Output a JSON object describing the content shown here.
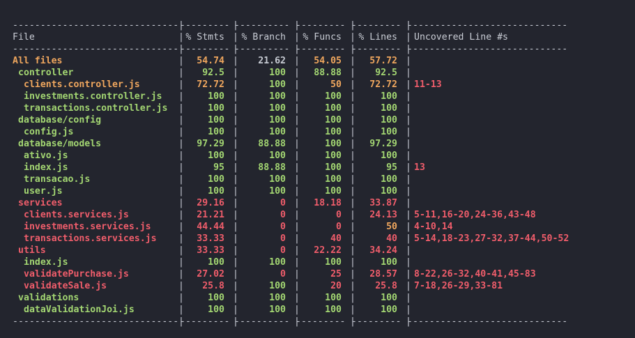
{
  "colors": {
    "background": "#23252e",
    "text": "#c8ccd4",
    "high": "#a3d672",
    "medium": "#f0a75e",
    "low": "#f05d6b"
  },
  "table": {
    "divider": {
      "file": "------------------------------",
      "stmts": "---------",
      "branch": "----------",
      "funcs": "---------",
      "lines": "---------",
      "uncovered": "-----------------------------"
    },
    "headers": {
      "file": "File",
      "stmts": "% Stmts",
      "branch": "% Branch",
      "funcs": "% Funcs",
      "lines": "% Lines",
      "uncovered": "Uncovered Line #s"
    },
    "rows": [
      {
        "file": "All files",
        "stmts": "54.74",
        "branch": "21.62",
        "funcs": "54.05",
        "lines": "57.72",
        "uncovered": "",
        "level": "medium",
        "c": [
          "medium",
          "red",
          "medium",
          "medium"
        ],
        "indent": 0
      },
      {
        "file": "controller",
        "stmts": "92.5",
        "branch": "100",
        "funcs": "88.88",
        "lines": "92.5",
        "uncovered": "",
        "level": "high",
        "c": [
          "high",
          "high",
          "high",
          "high"
        ],
        "indent": 1
      },
      {
        "file": "clients.controller.js",
        "stmts": "72.72",
        "branch": "100",
        "funcs": "50",
        "lines": "72.72",
        "uncovered": "11-13",
        "level": "medium",
        "c": [
          "medium",
          "high",
          "medium",
          "medium"
        ],
        "indent": 2
      },
      {
        "file": "investments.controller.js",
        "stmts": "100",
        "branch": "100",
        "funcs": "100",
        "lines": "100",
        "uncovered": "",
        "level": "high",
        "c": [
          "high",
          "high",
          "high",
          "high"
        ],
        "indent": 2
      },
      {
        "file": "transactions.controller.js",
        "stmts": "100",
        "branch": "100",
        "funcs": "100",
        "lines": "100",
        "uncovered": "",
        "level": "high",
        "c": [
          "high",
          "high",
          "high",
          "high"
        ],
        "indent": 2
      },
      {
        "file": "database/config",
        "stmts": "100",
        "branch": "100",
        "funcs": "100",
        "lines": "100",
        "uncovered": "",
        "level": "high",
        "c": [
          "high",
          "high",
          "high",
          "high"
        ],
        "indent": 1
      },
      {
        "file": "config.js",
        "stmts": "100",
        "branch": "100",
        "funcs": "100",
        "lines": "100",
        "uncovered": "",
        "level": "high",
        "c": [
          "high",
          "high",
          "high",
          "high"
        ],
        "indent": 2
      },
      {
        "file": "database/models",
        "stmts": "97.29",
        "branch": "88.88",
        "funcs": "100",
        "lines": "97.29",
        "uncovered": "",
        "level": "high",
        "c": [
          "high",
          "high",
          "high",
          "high"
        ],
        "indent": 1
      },
      {
        "file": "ativo.js",
        "stmts": "100",
        "branch": "100",
        "funcs": "100",
        "lines": "100",
        "uncovered": "",
        "level": "high",
        "c": [
          "high",
          "high",
          "high",
          "high"
        ],
        "indent": 2
      },
      {
        "file": "index.js",
        "stmts": "95",
        "branch": "88.88",
        "funcs": "100",
        "lines": "95",
        "uncovered": "13",
        "level": "high",
        "c": [
          "high",
          "high",
          "high",
          "high"
        ],
        "indent": 2
      },
      {
        "file": "transacao.js",
        "stmts": "100",
        "branch": "100",
        "funcs": "100",
        "lines": "100",
        "uncovered": "",
        "level": "high",
        "c": [
          "high",
          "high",
          "high",
          "high"
        ],
        "indent": 2
      },
      {
        "file": "user.js",
        "stmts": "100",
        "branch": "100",
        "funcs": "100",
        "lines": "100",
        "uncovered": "",
        "level": "high",
        "c": [
          "high",
          "high",
          "high",
          "high"
        ],
        "indent": 2
      },
      {
        "file": "services",
        "stmts": "29.16",
        "branch": "0",
        "funcs": "18.18",
        "lines": "33.87",
        "uncovered": "",
        "level": "low",
        "c": [
          "low",
          "low",
          "low",
          "low"
        ],
        "indent": 1
      },
      {
        "file": "clients.services.js",
        "stmts": "21.21",
        "branch": "0",
        "funcs": "0",
        "lines": "24.13",
        "uncovered": "5-11,16-20,24-36,43-48",
        "level": "low",
        "c": [
          "low",
          "low",
          "low",
          "low"
        ],
        "indent": 2
      },
      {
        "file": "investments.services.js",
        "stmts": "44.44",
        "branch": "0",
        "funcs": "0",
        "lines": "50",
        "uncovered": "4-10,14",
        "level": "low",
        "c": [
          "low",
          "low",
          "low",
          "medium"
        ],
        "indent": 2
      },
      {
        "file": "transactions.services.js",
        "stmts": "33.33",
        "branch": "0",
        "funcs": "40",
        "lines": "40",
        "uncovered": "5-14,18-23,27-32,37-44,50-52",
        "level": "low",
        "c": [
          "low",
          "low",
          "low",
          "low"
        ],
        "indent": 2
      },
      {
        "file": "utils",
        "stmts": "33.33",
        "branch": "0",
        "funcs": "22.22",
        "lines": "34.24",
        "uncovered": "",
        "level": "low",
        "c": [
          "low",
          "low",
          "low",
          "low"
        ],
        "indent": 1
      },
      {
        "file": "index.js",
        "stmts": "100",
        "branch": "100",
        "funcs": "100",
        "lines": "100",
        "uncovered": "",
        "level": "high",
        "c": [
          "high",
          "high",
          "high",
          "high"
        ],
        "indent": 2
      },
      {
        "file": "validatePurchase.js",
        "stmts": "27.02",
        "branch": "0",
        "funcs": "25",
        "lines": "28.57",
        "uncovered": "8-22,26-32,40-41,45-83",
        "level": "low",
        "c": [
          "low",
          "low",
          "low",
          "low"
        ],
        "indent": 2
      },
      {
        "file": "validateSale.js",
        "stmts": "25.8",
        "branch": "100",
        "funcs": "20",
        "lines": "25.8",
        "uncovered": "7-18,26-29,33-81",
        "level": "low",
        "c": [
          "low",
          "high",
          "low",
          "low"
        ],
        "indent": 2
      },
      {
        "file": "validations",
        "stmts": "100",
        "branch": "100",
        "funcs": "100",
        "lines": "100",
        "uncovered": "",
        "level": "high",
        "c": [
          "high",
          "high",
          "high",
          "high"
        ],
        "indent": 1
      },
      {
        "file": "dataValidationJoi.js",
        "stmts": "100",
        "branch": "100",
        "funcs": "100",
        "lines": "100",
        "uncovered": "",
        "level": "high",
        "c": [
          "high",
          "high",
          "high",
          "high"
        ],
        "indent": 2
      }
    ]
  }
}
